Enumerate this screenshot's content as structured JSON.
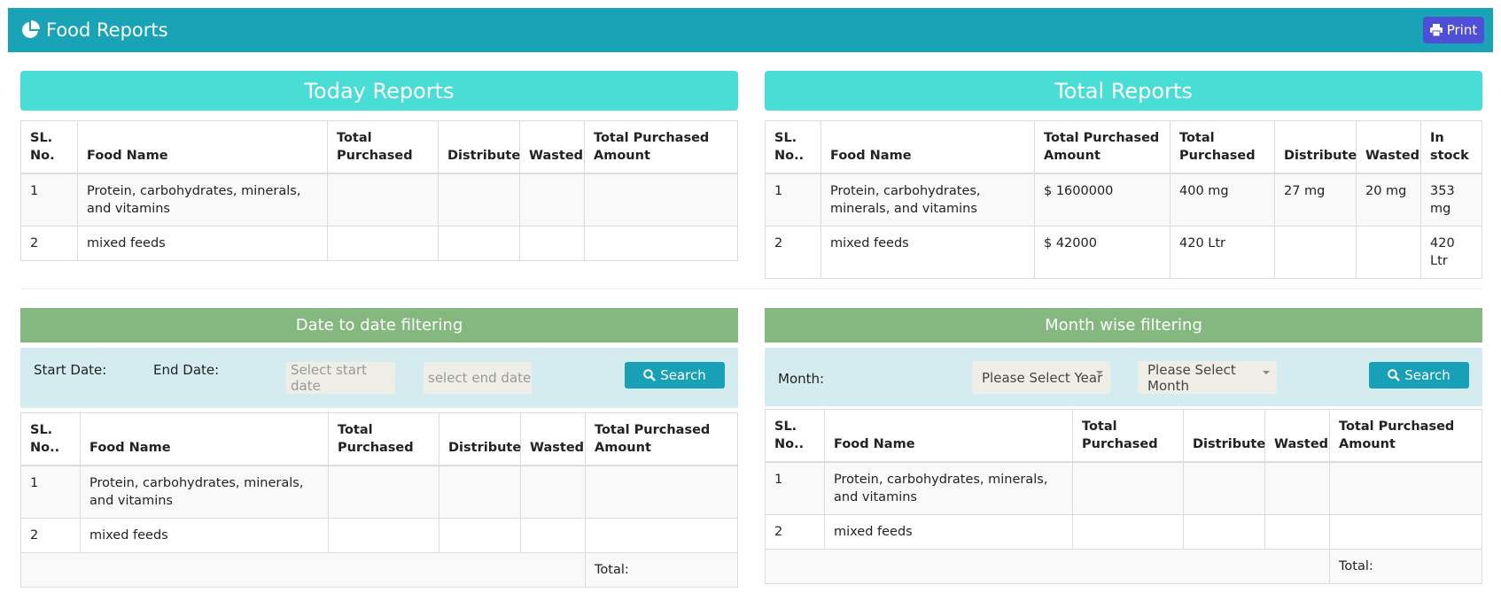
{
  "header": {
    "title": "Food Reports",
    "print_button": "Print"
  },
  "today_reports": {
    "title": "Today Reports",
    "table": {
      "headers": [
        "SL. No.",
        "Food Name",
        "Total Purchased",
        "Distribute",
        "Wasted",
        "Total Purchased Amount"
      ],
      "rows": [
        [
          1,
          "Protein, carbohydrates, minerals, and vitamins",
          null,
          null,
          null,
          null
        ],
        [
          2,
          "mixed feeds",
          null,
          null,
          null,
          null
        ]
      ]
    }
  },
  "total_reports": {
    "title": "Total Reports",
    "table": {
      "headers": [
        "SL. No..",
        "Food Name",
        "Total Purchased Amount",
        "Total Purchased",
        "Distribute",
        "Wasted",
        "In stock"
      ],
      "rows": [
        [
          1,
          "Protein, carbohydrates, minerals, and vitamins",
          "$ 1600000",
          "400 mg",
          "27 mg",
          "20 mg",
          "353 mg"
        ],
        [
          2,
          "mixed feeds",
          "$ 42000",
          "420 Ltr",
          null,
          null,
          "420 Ltr"
        ]
      ]
    }
  },
  "date_filter": {
    "title": "Date to date filtering",
    "start_label": "Start Date:",
    "end_label": "End Date:",
    "start_placeholder": "Select start date",
    "end_placeholder": "select end date",
    "search_button": "Search",
    "table": {
      "headers": [
        "SL. No..",
        "Food Name",
        "Total Purchased",
        "Distribute",
        "Wasted",
        "Total Purchased Amount"
      ],
      "rows": [
        [
          1,
          "Protein, carbohydrates, minerals, and vitamins",
          null,
          null,
          null,
          null
        ],
        [
          2,
          "mixed feeds",
          null,
          null,
          null,
          null
        ]
      ],
      "total_label": "Total:"
    }
  },
  "month_filter": {
    "title": "Month wise filtering",
    "month_label": "Month:",
    "year_select": "Please Select Year",
    "month_select": "Please Select Month",
    "search_button": "Search",
    "table": {
      "headers": [
        "SL. No..",
        "Food Name",
        "Total Purchased",
        "Distribute",
        "Wasted",
        "Total Purchased Amount"
      ],
      "rows": [
        [
          1,
          "Protein, carbohydrates, minerals, and vitamins",
          null,
          null,
          null,
          null
        ],
        [
          2,
          "mixed feeds",
          null,
          null,
          null,
          null
        ]
      ],
      "total_label": "Total:"
    }
  }
}
